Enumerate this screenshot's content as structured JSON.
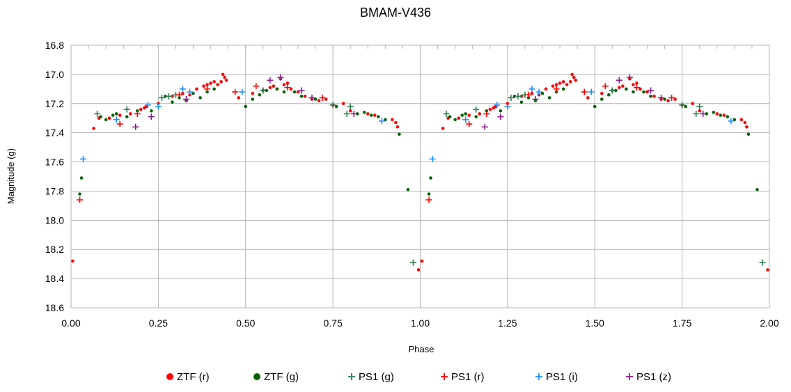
{
  "chart_data": {
    "type": "scatter",
    "title": "BMAM-V436",
    "xlabel": "Phase",
    "ylabel": "Magnitude (g)",
    "xlim": [
      0.0,
      2.0
    ],
    "ylim": [
      16.8,
      18.6
    ],
    "y_inverted": true,
    "grid": true,
    "legend_position": "bottom",
    "x_ticks": [
      "0.00",
      "0.25",
      "0.50",
      "0.75",
      "1.00",
      "1.25",
      "1.50",
      "1.75",
      "2.00"
    ],
    "y_ticks": [
      "16.8",
      "17.0",
      "17.2",
      "17.4",
      "17.6",
      "17.8",
      "18.0",
      "18.2",
      "18.4",
      "18.6"
    ],
    "series": [
      {
        "name": "ZTF (r)",
        "marker": "dot",
        "color": "#ff0000",
        "points": [
          [
            0.005,
            18.28
          ],
          [
            0.065,
            17.37
          ],
          [
            0.08,
            17.3
          ],
          [
            0.11,
            17.3
          ],
          [
            0.14,
            17.28
          ],
          [
            0.17,
            17.27
          ],
          [
            0.2,
            17.24
          ],
          [
            0.21,
            17.23
          ],
          [
            0.215,
            17.22
          ],
          [
            0.25,
            17.2
          ],
          [
            0.29,
            17.15
          ],
          [
            0.32,
            17.13
          ],
          [
            0.34,
            17.14
          ],
          [
            0.36,
            17.1
          ],
          [
            0.38,
            17.08
          ],
          [
            0.39,
            17.07
          ],
          [
            0.4,
            17.06
          ],
          [
            0.41,
            17.05
          ],
          [
            0.42,
            17.07
          ],
          [
            0.43,
            17.05
          ],
          [
            0.435,
            17.0
          ],
          [
            0.44,
            17.02
          ],
          [
            0.445,
            17.04
          ],
          [
            0.48,
            17.16
          ],
          [
            0.52,
            17.13
          ],
          [
            0.55,
            17.11
          ],
          [
            0.57,
            17.09
          ],
          [
            0.58,
            17.08
          ],
          [
            0.6,
            17.03
          ],
          [
            0.61,
            17.07
          ],
          [
            0.62,
            17.06
          ],
          [
            0.63,
            17.1
          ],
          [
            0.65,
            17.12
          ],
          [
            0.67,
            17.15
          ],
          [
            0.69,
            17.17
          ],
          [
            0.71,
            17.18
          ],
          [
            0.73,
            17.17
          ],
          [
            0.75,
            17.21
          ],
          [
            0.78,
            17.2
          ],
          [
            0.8,
            17.25
          ],
          [
            0.85,
            17.27
          ],
          [
            0.87,
            17.28
          ],
          [
            0.92,
            17.31
          ],
          [
            0.93,
            17.33
          ],
          [
            0.935,
            17.36
          ],
          [
            0.995,
            18.34
          ],
          [
            1.005,
            18.28
          ],
          [
            1.065,
            17.37
          ],
          [
            1.08,
            17.3
          ],
          [
            1.11,
            17.3
          ],
          [
            1.14,
            17.28
          ],
          [
            1.17,
            17.27
          ],
          [
            1.2,
            17.24
          ],
          [
            1.21,
            17.23
          ],
          [
            1.215,
            17.22
          ],
          [
            1.25,
            17.2
          ],
          [
            1.29,
            17.15
          ],
          [
            1.32,
            17.13
          ],
          [
            1.34,
            17.14
          ],
          [
            1.36,
            17.1
          ],
          [
            1.38,
            17.08
          ],
          [
            1.39,
            17.07
          ],
          [
            1.4,
            17.06
          ],
          [
            1.41,
            17.05
          ],
          [
            1.42,
            17.07
          ],
          [
            1.43,
            17.05
          ],
          [
            1.435,
            17.0
          ],
          [
            1.44,
            17.02
          ],
          [
            1.445,
            17.04
          ],
          [
            1.48,
            17.16
          ],
          [
            1.52,
            17.13
          ],
          [
            1.55,
            17.11
          ],
          [
            1.57,
            17.09
          ],
          [
            1.58,
            17.08
          ],
          [
            1.6,
            17.03
          ],
          [
            1.61,
            17.07
          ],
          [
            1.62,
            17.06
          ],
          [
            1.63,
            17.1
          ],
          [
            1.65,
            17.12
          ],
          [
            1.67,
            17.15
          ],
          [
            1.69,
            17.17
          ],
          [
            1.71,
            17.18
          ],
          [
            1.73,
            17.17
          ],
          [
            1.75,
            17.21
          ],
          [
            1.78,
            17.2
          ],
          [
            1.8,
            17.25
          ],
          [
            1.85,
            17.27
          ],
          [
            1.87,
            17.28
          ],
          [
            1.92,
            17.31
          ],
          [
            1.93,
            17.33
          ],
          [
            1.935,
            17.36
          ],
          [
            1.995,
            18.34
          ]
        ]
      },
      {
        "name": "ZTF (g)",
        "marker": "dot",
        "color": "#006400",
        "points": [
          [
            0.025,
            17.82
          ],
          [
            0.03,
            17.71
          ],
          [
            0.085,
            17.29
          ],
          [
            0.1,
            17.31
          ],
          [
            0.12,
            17.28
          ],
          [
            0.13,
            17.27
          ],
          [
            0.16,
            17.29
          ],
          [
            0.19,
            17.25
          ],
          [
            0.23,
            17.25
          ],
          [
            0.27,
            17.15
          ],
          [
            0.29,
            17.19
          ],
          [
            0.31,
            17.16
          ],
          [
            0.33,
            17.18
          ],
          [
            0.35,
            17.13
          ],
          [
            0.37,
            17.16
          ],
          [
            0.39,
            17.12
          ],
          [
            0.41,
            17.1
          ],
          [
            0.5,
            17.22
          ],
          [
            0.52,
            17.17
          ],
          [
            0.54,
            17.14
          ],
          [
            0.56,
            17.11
          ],
          [
            0.59,
            17.1
          ],
          [
            0.61,
            17.12
          ],
          [
            0.64,
            17.12
          ],
          [
            0.66,
            17.15
          ],
          [
            0.7,
            17.17
          ],
          [
            0.76,
            17.22
          ],
          [
            0.82,
            17.27
          ],
          [
            0.84,
            17.26
          ],
          [
            0.86,
            17.28
          ],
          [
            0.88,
            17.29
          ],
          [
            0.9,
            17.31
          ],
          [
            0.94,
            17.41
          ],
          [
            0.965,
            17.79
          ],
          [
            1.025,
            17.82
          ],
          [
            1.03,
            17.71
          ],
          [
            1.085,
            17.29
          ],
          [
            1.1,
            17.31
          ],
          [
            1.12,
            17.28
          ],
          [
            1.13,
            17.27
          ],
          [
            1.16,
            17.29
          ],
          [
            1.19,
            17.25
          ],
          [
            1.23,
            17.25
          ],
          [
            1.27,
            17.15
          ],
          [
            1.29,
            17.19
          ],
          [
            1.31,
            17.16
          ],
          [
            1.33,
            17.18
          ],
          [
            1.35,
            17.13
          ],
          [
            1.37,
            17.16
          ],
          [
            1.39,
            17.12
          ],
          [
            1.41,
            17.1
          ],
          [
            1.5,
            17.22
          ],
          [
            1.52,
            17.17
          ],
          [
            1.54,
            17.14
          ],
          [
            1.56,
            17.11
          ],
          [
            1.59,
            17.1
          ],
          [
            1.61,
            17.12
          ],
          [
            1.64,
            17.12
          ],
          [
            1.66,
            17.15
          ],
          [
            1.7,
            17.17
          ],
          [
            1.76,
            17.22
          ],
          [
            1.82,
            17.27
          ],
          [
            1.84,
            17.26
          ],
          [
            1.86,
            17.28
          ],
          [
            1.88,
            17.29
          ],
          [
            1.9,
            17.31
          ],
          [
            1.94,
            17.41
          ],
          [
            1.965,
            17.79
          ]
        ]
      },
      {
        "name": "PS1 (g)",
        "marker": "plus",
        "color": "#2e7d4f",
        "points": [
          [
            0.075,
            17.27
          ],
          [
            0.16,
            17.24
          ],
          [
            0.26,
            17.16
          ],
          [
            0.28,
            17.15
          ],
          [
            0.3,
            17.14
          ],
          [
            0.55,
            17.11
          ],
          [
            0.75,
            17.21
          ],
          [
            0.79,
            17.27
          ],
          [
            0.8,
            17.22
          ],
          [
            0.98,
            18.29
          ],
          [
            1.075,
            17.27
          ],
          [
            1.16,
            17.24
          ],
          [
            1.26,
            17.16
          ],
          [
            1.28,
            17.15
          ],
          [
            1.3,
            17.14
          ],
          [
            1.55,
            17.11
          ],
          [
            1.75,
            17.21
          ],
          [
            1.79,
            17.27
          ],
          [
            1.8,
            17.22
          ],
          [
            1.98,
            18.29
          ]
        ]
      },
      {
        "name": "PS1 (r)",
        "marker": "plus",
        "color": "#ff0000",
        "points": [
          [
            0.025,
            17.86
          ],
          [
            0.14,
            17.34
          ],
          [
            0.19,
            17.27
          ],
          [
            0.31,
            17.14
          ],
          [
            0.39,
            17.1
          ],
          [
            0.47,
            17.12
          ],
          [
            0.53,
            17.08
          ],
          [
            0.62,
            17.09
          ],
          [
            0.72,
            17.16
          ],
          [
            1.025,
            17.86
          ],
          [
            1.14,
            17.34
          ],
          [
            1.19,
            17.27
          ],
          [
            1.31,
            17.14
          ],
          [
            1.39,
            17.1
          ],
          [
            1.47,
            17.12
          ],
          [
            1.53,
            17.08
          ],
          [
            1.62,
            17.09
          ],
          [
            1.72,
            17.16
          ]
        ]
      },
      {
        "name": "PS1 (i)",
        "marker": "plus",
        "color": "#1e90ff",
        "points": [
          [
            0.035,
            17.58
          ],
          [
            0.13,
            17.31
          ],
          [
            0.22,
            17.21
          ],
          [
            0.25,
            17.22
          ],
          [
            0.32,
            17.1
          ],
          [
            0.34,
            17.12
          ],
          [
            0.49,
            17.12
          ],
          [
            0.89,
            17.32
          ],
          [
            1.035,
            17.58
          ],
          [
            1.13,
            17.31
          ],
          [
            1.22,
            17.21
          ],
          [
            1.25,
            17.22
          ],
          [
            1.32,
            17.1
          ],
          [
            1.34,
            17.12
          ],
          [
            1.49,
            17.12
          ],
          [
            1.89,
            17.32
          ]
        ]
      },
      {
        "name": "PS1 (z)",
        "marker": "plus",
        "color": "#8b1a8b",
        "points": [
          [
            0.185,
            17.36
          ],
          [
            0.23,
            17.29
          ],
          [
            0.33,
            17.17
          ],
          [
            0.57,
            17.04
          ],
          [
            0.6,
            17.02
          ],
          [
            0.66,
            17.11
          ],
          [
            0.69,
            17.16
          ],
          [
            0.81,
            17.27
          ],
          [
            1.185,
            17.36
          ],
          [
            1.23,
            17.29
          ],
          [
            1.33,
            17.17
          ],
          [
            1.57,
            17.04
          ],
          [
            1.6,
            17.02
          ],
          [
            1.66,
            17.11
          ],
          [
            1.69,
            17.16
          ],
          [
            1.81,
            17.27
          ]
        ]
      }
    ]
  }
}
